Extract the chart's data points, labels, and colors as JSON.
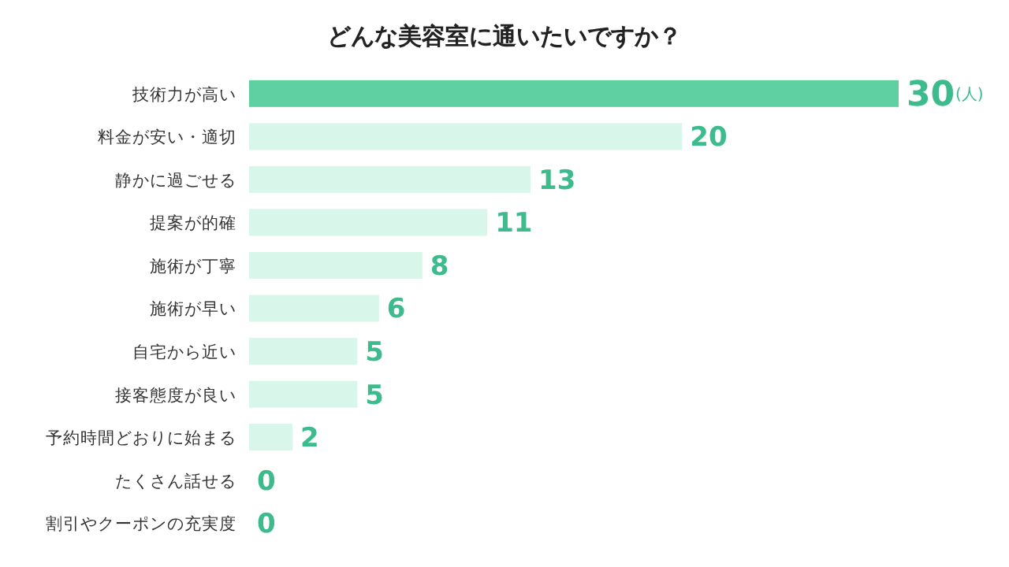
{
  "chart_data": {
    "type": "bar",
    "orientation": "horizontal",
    "title": "どんな美容室に通いたいですか？",
    "categories": [
      "技術力が高い",
      "料金が安い・適切",
      "静かに過ごせる",
      "提案が的確",
      "施術が丁寧",
      "施術が早い",
      "自宅から近い",
      "接客態度が良い",
      "予約時間どおりに始まる",
      "たくさん話せる",
      "割引やクーポンの充実度"
    ],
    "values": [
      30,
      20,
      13,
      11,
      8,
      6,
      5,
      5,
      2,
      0,
      0
    ],
    "colors": [
      "#5fd0a2",
      "#d8f6e9",
      "#d8f6e9",
      "#d8f6e9",
      "#d8f6e9",
      "#d8f6e9",
      "#d8f6e9",
      "#d8f6e9",
      "#d8f6e9",
      "#d8f6e9",
      "#d8f6e9"
    ],
    "data_labels": true,
    "annotations": [
      "(人)"
    ]
  }
}
